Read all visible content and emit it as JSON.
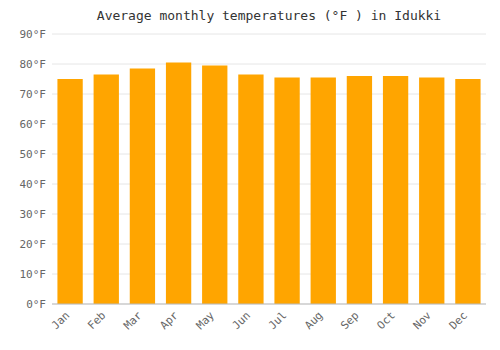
{
  "chart_data": {
    "type": "bar",
    "title": "Average monthly temperatures (°F ) in Idukki",
    "categories": [
      "Jan",
      "Feb",
      "Mar",
      "Apr",
      "May",
      "Jun",
      "Jul",
      "Aug",
      "Sep",
      "Oct",
      "Nov",
      "Dec"
    ],
    "values": [
      75,
      76.5,
      78.5,
      80.5,
      79.5,
      76.5,
      75.5,
      75.5,
      76,
      76,
      75.5,
      75
    ],
    "color": "#FFA500",
    "ylim": [
      0,
      90
    ],
    "yticks": [
      {
        "value": 0,
        "label": "0°F"
      },
      {
        "value": 10,
        "label": "10°F"
      },
      {
        "value": 20,
        "label": "20°F"
      },
      {
        "value": 30,
        "label": "30°F"
      },
      {
        "value": 40,
        "label": "40°F"
      },
      {
        "value": 50,
        "label": "50°F"
      },
      {
        "value": 60,
        "label": "60°F"
      },
      {
        "value": 70,
        "label": "70°F"
      },
      {
        "value": 80,
        "label": "80°F"
      },
      {
        "value": 90,
        "label": "90°F"
      }
    ],
    "grid": true
  }
}
